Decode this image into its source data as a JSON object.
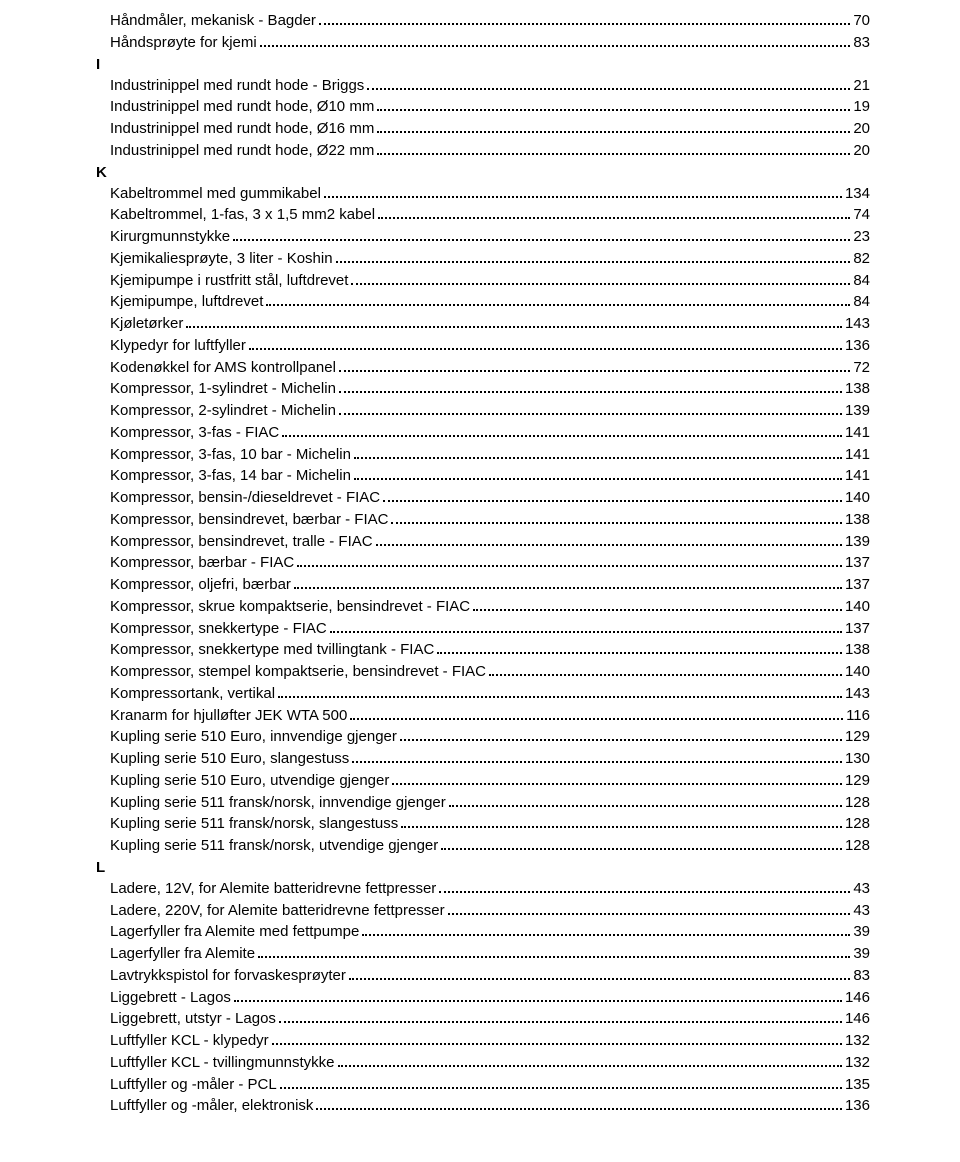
{
  "sections": [
    {
      "header": null,
      "entries": [
        {
          "label": "Håndmåler, mekanisk - Bagder",
          "page": "70"
        },
        {
          "label": "Håndsprøyte for kjemi",
          "page": "83"
        }
      ]
    },
    {
      "header": "I",
      "entries": [
        {
          "label": "Industrinippel med rundt hode - Briggs",
          "page": "21"
        },
        {
          "label": "Industrinippel med rundt hode, Ø10 mm",
          "page": "19"
        },
        {
          "label": "Industrinippel med rundt hode, Ø16 mm",
          "page": "20"
        },
        {
          "label": "Industrinippel med rundt hode, Ø22 mm",
          "page": "20"
        }
      ]
    },
    {
      "header": "K",
      "entries": [
        {
          "label": "Kabeltrommel med gummikabel",
          "page": "134"
        },
        {
          "label": "Kabeltrommel, 1-fas, 3 x 1,5 mm2 kabel",
          "page": "74"
        },
        {
          "label": "Kirurgmunnstykke",
          "page": "23"
        },
        {
          "label": "Kjemikaliesprøyte, 3 liter - Koshin",
          "page": "82"
        },
        {
          "label": "Kjemipumpe i rustfritt stål, luftdrevet",
          "page": "84"
        },
        {
          "label": "Kjemipumpe, luftdrevet",
          "page": "84"
        },
        {
          "label": "Kjøletørker",
          "page": "143"
        },
        {
          "label": "Klypedyr for luftfyller",
          "page": "136"
        },
        {
          "label": "Kodenøkkel for AMS kontrollpanel",
          "page": "72"
        },
        {
          "label": "Kompressor, 1-sylindret - Michelin",
          "page": "138"
        },
        {
          "label": "Kompressor, 2-sylindret - Michelin",
          "page": "139"
        },
        {
          "label": "Kompressor, 3-fas - FIAC",
          "page": "141"
        },
        {
          "label": "Kompressor, 3-fas, 10 bar - Michelin",
          "page": "141"
        },
        {
          "label": "Kompressor, 3-fas, 14 bar - Michelin",
          "page": "141"
        },
        {
          "label": "Kompressor, bensin-/dieseldrevet - FIAC",
          "page": "140"
        },
        {
          "label": "Kompressor, bensindrevet, bærbar - FIAC",
          "page": "138"
        },
        {
          "label": "Kompressor, bensindrevet, tralle - FIAC",
          "page": "139"
        },
        {
          "label": "Kompressor, bærbar - FIAC",
          "page": "137"
        },
        {
          "label": "Kompressor, oljefri, bærbar",
          "page": "137"
        },
        {
          "label": "Kompressor, skrue kompaktserie, bensindrevet - FIAC",
          "page": "140"
        },
        {
          "label": "Kompressor, snekkertype - FIAC",
          "page": "137"
        },
        {
          "label": "Kompressor, snekkertype med tvillingtank - FIAC",
          "page": "138"
        },
        {
          "label": "Kompressor, stempel kompaktserie, bensindrevet - FIAC",
          "page": "140"
        },
        {
          "label": "Kompressortank, vertikal",
          "page": "143"
        },
        {
          "label": "Kranarm for hjulløfter JEK WTA 500",
          "page": "116"
        },
        {
          "label": "Kupling serie 510 Euro, innvendige gjenger",
          "page": "129"
        },
        {
          "label": "Kupling serie 510 Euro, slangestuss",
          "page": "130"
        },
        {
          "label": "Kupling serie 510 Euro, utvendige gjenger",
          "page": "129"
        },
        {
          "label": "Kupling serie 511 fransk/norsk, innvendige gjenger",
          "page": "128"
        },
        {
          "label": "Kupling serie 511 fransk/norsk, slangestuss",
          "page": "128"
        },
        {
          "label": "Kupling serie 511 fransk/norsk, utvendige gjenger",
          "page": "128"
        }
      ]
    },
    {
      "header": "L",
      "entries": [
        {
          "label": "Ladere, 12V, for Alemite batteridrevne fettpresser",
          "page": "43"
        },
        {
          "label": "Ladere, 220V, for Alemite batteridrevne fettpresser",
          "page": "43"
        },
        {
          "label": "Lagerfyller fra Alemite med fettpumpe",
          "page": "39"
        },
        {
          "label": "Lagerfyller fra Alemite",
          "page": "39"
        },
        {
          "label": "Lavtrykkspistol for forvaskesprøyter",
          "page": "83"
        },
        {
          "label": "Liggebrett - Lagos",
          "page": "146"
        },
        {
          "label": "Liggebrett, utstyr - Lagos",
          "page": "146"
        },
        {
          "label": "Luftfyller KCL - klypedyr",
          "page": "132"
        },
        {
          "label": "Luftfyller KCL - tvillingmunnstykke",
          "page": "132"
        },
        {
          "label": "Luftfyller og -måler - PCL",
          "page": "135"
        },
        {
          "label": "Luftfyller og -måler, elektronisk",
          "page": "136"
        }
      ]
    }
  ]
}
